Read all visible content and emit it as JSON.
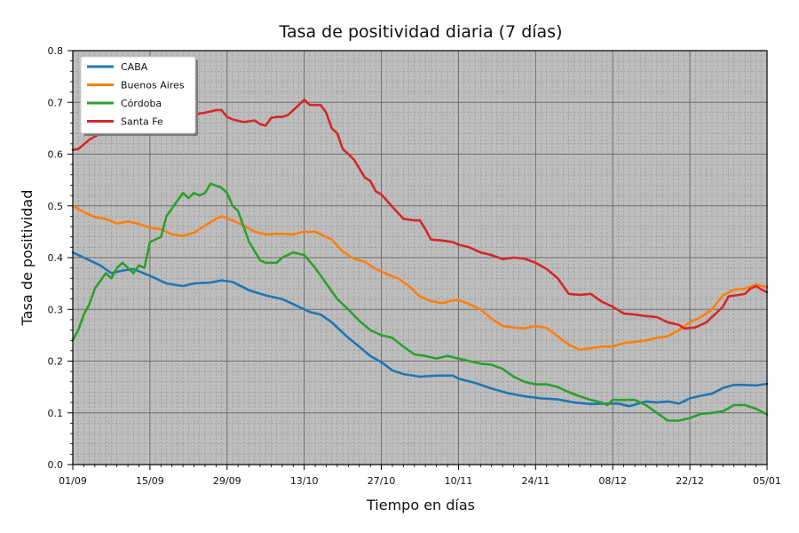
{
  "chart_data": {
    "type": "line",
    "title": "Tasa de positividad diaria (7 días)",
    "xlabel": "Tiempo en días",
    "ylabel": "Tasa de positividad",
    "x_ticks": [
      "01/09",
      "15/09",
      "29/09",
      "13/10",
      "27/10",
      "10/11",
      "24/11",
      "08/12",
      "22/12",
      "05/01"
    ],
    "x_tick_offsets": [
      0,
      14,
      28,
      42,
      56,
      70,
      84,
      98,
      112,
      126
    ],
    "xlim": [
      0,
      126
    ],
    "ylim": [
      0,
      0.8
    ],
    "y_ticks": [
      "0.0",
      "0.1",
      "0.2",
      "0.3",
      "0.4",
      "0.5",
      "0.6",
      "0.7",
      "0.8"
    ],
    "grid": "major and minor",
    "legend_position": "top-left",
    "series": [
      {
        "name": "CABA",
        "color": "#1f77b4",
        "points": [
          [
            0,
            0.41
          ],
          [
            3,
            0.395
          ],
          [
            5,
            0.385
          ],
          [
            7,
            0.37
          ],
          [
            9,
            0.375
          ],
          [
            11,
            0.378
          ],
          [
            14,
            0.365
          ],
          [
            17,
            0.35
          ],
          [
            20,
            0.345
          ],
          [
            22,
            0.35
          ],
          [
            25,
            0.352
          ],
          [
            27,
            0.356
          ],
          [
            29,
            0.353
          ],
          [
            32,
            0.337
          ],
          [
            35,
            0.327
          ],
          [
            38,
            0.32
          ],
          [
            41,
            0.305
          ],
          [
            43,
            0.295
          ],
          [
            45,
            0.29
          ],
          [
            47,
            0.275
          ],
          [
            50,
            0.245
          ],
          [
            52,
            0.228
          ],
          [
            54,
            0.21
          ],
          [
            56,
            0.198
          ],
          [
            58,
            0.182
          ],
          [
            60,
            0.175
          ],
          [
            63,
            0.17
          ],
          [
            66,
            0.172
          ],
          [
            69,
            0.172
          ],
          [
            70,
            0.166
          ],
          [
            73,
            0.158
          ],
          [
            76,
            0.147
          ],
          [
            79,
            0.138
          ],
          [
            82,
            0.132
          ],
          [
            85,
            0.128
          ],
          [
            88,
            0.126
          ],
          [
            91,
            0.12
          ],
          [
            94,
            0.117
          ],
          [
            97,
            0.118
          ],
          [
            99,
            0.118
          ],
          [
            101,
            0.113
          ],
          [
            104,
            0.122
          ],
          [
            106,
            0.12
          ],
          [
            108,
            0.122
          ],
          [
            110,
            0.118
          ],
          [
            112,
            0.128
          ],
          [
            114,
            0.133
          ],
          [
            116,
            0.137
          ],
          [
            118,
            0.148
          ],
          [
            120,
            0.154
          ],
          [
            122,
            0.154
          ],
          [
            124,
            0.153
          ],
          [
            126,
            0.156
          ]
        ]
      },
      {
        "name": "Buenos Aires",
        "color": "#ff7f0e",
        "points": [
          [
            0,
            0.5
          ],
          [
            2,
            0.488
          ],
          [
            4,
            0.478
          ],
          [
            6,
            0.475
          ],
          [
            8,
            0.466
          ],
          [
            10,
            0.47
          ],
          [
            12,
            0.465
          ],
          [
            14,
            0.458
          ],
          [
            16,
            0.455
          ],
          [
            18,
            0.445
          ],
          [
            20,
            0.442
          ],
          [
            22,
            0.448
          ],
          [
            24,
            0.462
          ],
          [
            26,
            0.475
          ],
          [
            27,
            0.48
          ],
          [
            29,
            0.472
          ],
          [
            31,
            0.462
          ],
          [
            33,
            0.45
          ],
          [
            35,
            0.445
          ],
          [
            37,
            0.446
          ],
          [
            40,
            0.445
          ],
          [
            42,
            0.45
          ],
          [
            44,
            0.45
          ],
          [
            47,
            0.435
          ],
          [
            49,
            0.412
          ],
          [
            51,
            0.398
          ],
          [
            53,
            0.392
          ],
          [
            55,
            0.378
          ],
          [
            57,
            0.368
          ],
          [
            59,
            0.36
          ],
          [
            61,
            0.345
          ],
          [
            63,
            0.325
          ],
          [
            65,
            0.316
          ],
          [
            67,
            0.312
          ],
          [
            69,
            0.317
          ],
          [
            70,
            0.318
          ],
          [
            72,
            0.31
          ],
          [
            74,
            0.3
          ],
          [
            76,
            0.282
          ],
          [
            78,
            0.268
          ],
          [
            80,
            0.265
          ],
          [
            82,
            0.263
          ],
          [
            84,
            0.268
          ],
          [
            86,
            0.264
          ],
          [
            88,
            0.248
          ],
          [
            90,
            0.232
          ],
          [
            92,
            0.222
          ],
          [
            94,
            0.225
          ],
          [
            96,
            0.228
          ],
          [
            98,
            0.228
          ],
          [
            100,
            0.235
          ],
          [
            102,
            0.237
          ],
          [
            104,
            0.24
          ],
          [
            106,
            0.245
          ],
          [
            108,
            0.248
          ],
          [
            110,
            0.26
          ],
          [
            112,
            0.275
          ],
          [
            114,
            0.285
          ],
          [
            116,
            0.3
          ],
          [
            118,
            0.327
          ],
          [
            120,
            0.338
          ],
          [
            122,
            0.34
          ],
          [
            124,
            0.348
          ],
          [
            126,
            0.343
          ]
        ]
      },
      {
        "name": "Córdoba",
        "color": "#2ca02c",
        "points": [
          [
            0,
            0.24
          ],
          [
            1,
            0.26
          ],
          [
            2,
            0.29
          ],
          [
            3,
            0.31
          ],
          [
            4,
            0.34
          ],
          [
            6,
            0.37
          ],
          [
            7,
            0.36
          ],
          [
            8,
            0.38
          ],
          [
            9,
            0.39
          ],
          [
            11,
            0.37
          ],
          [
            12,
            0.385
          ],
          [
            13,
            0.38
          ],
          [
            14,
            0.43
          ],
          [
            16,
            0.44
          ],
          [
            17,
            0.48
          ],
          [
            19,
            0.51
          ],
          [
            20,
            0.525
          ],
          [
            21,
            0.515
          ],
          [
            22,
            0.525
          ],
          [
            23,
            0.52
          ],
          [
            24,
            0.525
          ],
          [
            25,
            0.543
          ],
          [
            27,
            0.535
          ],
          [
            28,
            0.525
          ],
          [
            29,
            0.5
          ],
          [
            30,
            0.49
          ],
          [
            31,
            0.46
          ],
          [
            32,
            0.43
          ],
          [
            34,
            0.395
          ],
          [
            35,
            0.39
          ],
          [
            37,
            0.39
          ],
          [
            38,
            0.4
          ],
          [
            39,
            0.405
          ],
          [
            40,
            0.41
          ],
          [
            42,
            0.405
          ],
          [
            44,
            0.38
          ],
          [
            46,
            0.35
          ],
          [
            48,
            0.32
          ],
          [
            50,
            0.3
          ],
          [
            52,
            0.278
          ],
          [
            54,
            0.26
          ],
          [
            56,
            0.25
          ],
          [
            58,
            0.245
          ],
          [
            60,
            0.228
          ],
          [
            62,
            0.213
          ],
          [
            64,
            0.21
          ],
          [
            66,
            0.205
          ],
          [
            68,
            0.21
          ],
          [
            70,
            0.205
          ],
          [
            72,
            0.2
          ],
          [
            74,
            0.195
          ],
          [
            76,
            0.193
          ],
          [
            78,
            0.185
          ],
          [
            80,
            0.17
          ],
          [
            82,
            0.16
          ],
          [
            84,
            0.155
          ],
          [
            86,
            0.155
          ],
          [
            88,
            0.15
          ],
          [
            90,
            0.14
          ],
          [
            92,
            0.132
          ],
          [
            94,
            0.125
          ],
          [
            96,
            0.12
          ],
          [
            97,
            0.115
          ],
          [
            98,
            0.125
          ],
          [
            100,
            0.125
          ],
          [
            102,
            0.125
          ],
          [
            104,
            0.115
          ],
          [
            106,
            0.1
          ],
          [
            108,
            0.085
          ],
          [
            110,
            0.085
          ],
          [
            112,
            0.09
          ],
          [
            114,
            0.098
          ],
          [
            116,
            0.1
          ],
          [
            118,
            0.103
          ],
          [
            120,
            0.115
          ],
          [
            122,
            0.115
          ],
          [
            124,
            0.108
          ],
          [
            126,
            0.097
          ]
        ]
      },
      {
        "name": "Santa Fe",
        "color": "#d62728",
        "points": [
          [
            0,
            0.608
          ],
          [
            1,
            0.61
          ],
          [
            3,
            0.628
          ],
          [
            5,
            0.64
          ],
          [
            7,
            0.65
          ],
          [
            9,
            0.658
          ],
          [
            12,
            0.665
          ],
          [
            15,
            0.67
          ],
          [
            18,
            0.672
          ],
          [
            21,
            0.675
          ],
          [
            24,
            0.68
          ],
          [
            26,
            0.685
          ],
          [
            27,
            0.685
          ],
          [
            28,
            0.672
          ],
          [
            29,
            0.667
          ],
          [
            31,
            0.662
          ],
          [
            33,
            0.665
          ],
          [
            34,
            0.658
          ],
          [
            35,
            0.655
          ],
          [
            36,
            0.67
          ],
          [
            37,
            0.672
          ],
          [
            38,
            0.672
          ],
          [
            39,
            0.675
          ],
          [
            40,
            0.685
          ],
          [
            41,
            0.695
          ],
          [
            42,
            0.705
          ],
          [
            43,
            0.695
          ],
          [
            45,
            0.695
          ],
          [
            46,
            0.68
          ],
          [
            47,
            0.65
          ],
          [
            48,
            0.64
          ],
          [
            49,
            0.61
          ],
          [
            51,
            0.59
          ],
          [
            53,
            0.555
          ],
          [
            54,
            0.548
          ],
          [
            55,
            0.528
          ],
          [
            56,
            0.522
          ],
          [
            58,
            0.498
          ],
          [
            60,
            0.475
          ],
          [
            62,
            0.472
          ],
          [
            63,
            0.472
          ],
          [
            64,
            0.455
          ],
          [
            65,
            0.435
          ],
          [
            67,
            0.433
          ],
          [
            69,
            0.43
          ],
          [
            70,
            0.425
          ],
          [
            72,
            0.42
          ],
          [
            74,
            0.41
          ],
          [
            76,
            0.405
          ],
          [
            78,
            0.397
          ],
          [
            80,
            0.4
          ],
          [
            82,
            0.398
          ],
          [
            84,
            0.39
          ],
          [
            86,
            0.378
          ],
          [
            88,
            0.36
          ],
          [
            90,
            0.33
          ],
          [
            92,
            0.328
          ],
          [
            94,
            0.33
          ],
          [
            96,
            0.315
          ],
          [
            98,
            0.305
          ],
          [
            100,
            0.292
          ],
          [
            102,
            0.29
          ],
          [
            104,
            0.287
          ],
          [
            106,
            0.285
          ],
          [
            108,
            0.275
          ],
          [
            110,
            0.27
          ],
          [
            111,
            0.263
          ],
          [
            113,
            0.265
          ],
          [
            115,
            0.275
          ],
          [
            117,
            0.295
          ],
          [
            118,
            0.305
          ],
          [
            119,
            0.325
          ],
          [
            121,
            0.328
          ],
          [
            122,
            0.33
          ],
          [
            123,
            0.34
          ],
          [
            124,
            0.345
          ],
          [
            125,
            0.338
          ],
          [
            126,
            0.333
          ]
        ]
      }
    ]
  }
}
